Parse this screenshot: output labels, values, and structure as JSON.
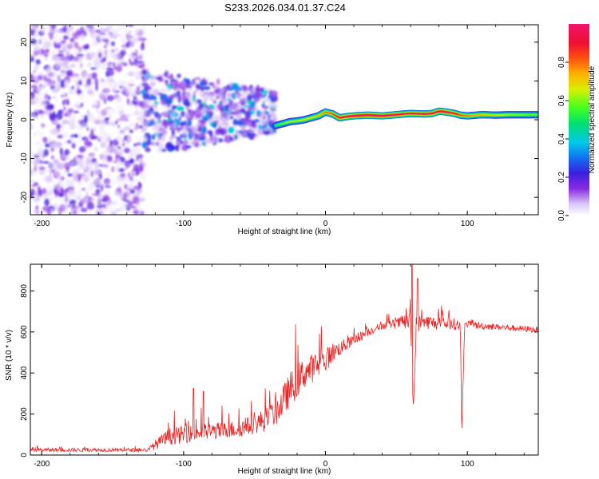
{
  "title": "S233.2026.034.01.37.C24",
  "chart_data": [
    {
      "type": "heatmap",
      "name": "spectrogram",
      "xlabel": "Height of straight line (km)",
      "ylabel": "Frequency (Hz)",
      "xlim": [
        -208,
        150
      ],
      "ylim": [
        -24.5,
        24.5
      ],
      "xticks": [
        -200,
        -100,
        0,
        100
      ],
      "xtick_labels": [
        "-200",
        "-100",
        "0",
        "100"
      ],
      "yticks": [
        -20,
        -10,
        0,
        10,
        20
      ],
      "ytick_labels": [
        "-20",
        "-10",
        "0",
        "10",
        "20"
      ],
      "colorbar": {
        "label": "Normalized spectral amplitude",
        "range": [
          0,
          1
        ],
        "ticks": [
          0.0,
          0.2,
          0.4,
          0.6,
          0.8
        ],
        "tick_labels": [
          "0.0",
          "0.2",
          "0.4",
          "0.6",
          "0.8"
        ]
      },
      "carrier_track": {
        "x": [
          -35,
          -30,
          -25,
          -20,
          -15,
          -10,
          -5,
          0,
          5,
          10,
          15,
          20,
          30,
          40,
          50,
          55,
          60,
          70,
          75,
          80,
          85,
          90,
          95,
          100,
          110,
          120,
          130,
          150
        ],
        "y": [
          -1.5,
          -1.0,
          -0.5,
          -0.3,
          0.0,
          0.5,
          1.0,
          2.0,
          1.5,
          0.5,
          0.8,
          1.0,
          1.2,
          1.0,
          1.3,
          1.5,
          1.6,
          1.5,
          1.6,
          2.2,
          2.0,
          1.7,
          1.2,
          1.0,
          1.3,
          1.2,
          1.3,
          1.3
        ],
        "amplitude": [
          0.45,
          0.5,
          0.55,
          0.55,
          0.6,
          0.6,
          0.65,
          0.7,
          0.75,
          0.85,
          0.9,
          0.95,
          0.97,
          0.95,
          0.9,
          0.85,
          0.85,
          0.9,
          0.88,
          0.9,
          0.92,
          0.85,
          0.75,
          0.7,
          0.65,
          0.6,
          0.55,
          0.5
        ]
      },
      "noise_regions": [
        {
          "x_range": [
            -208,
            -128
          ],
          "y_range": [
            -24.5,
            24.5
          ],
          "amplitude_range": [
            0.02,
            0.22
          ]
        },
        {
          "x_range": [
            -128,
            -35
          ],
          "y_range": [
            -10,
            12
          ],
          "amplitude_range": [
            0.05,
            0.3
          ]
        }
      ]
    },
    {
      "type": "line",
      "name": "snr",
      "xlabel": "Height of straight line (km)",
      "ylabel": "SNR (10 * v/v)",
      "xlim": [
        -208,
        150
      ],
      "ylim": [
        0,
        930
      ],
      "xticks": [
        -200,
        -100,
        0,
        100
      ],
      "xtick_labels": [
        "-200",
        "-100",
        "0",
        "100"
      ],
      "yticks": [
        0,
        200,
        400,
        600,
        800
      ],
      "ytick_labels": [
        "0",
        "200",
        "400",
        "600",
        "800"
      ],
      "color": "#ee2222",
      "series": [
        {
          "name": "SNR",
          "x": [
            -208,
            -180,
            -150,
            -125,
            -120,
            -110,
            -100,
            -90,
            -80,
            -70,
            -60,
            -50,
            -40,
            -35,
            -30,
            -25,
            -20,
            -15,
            -10,
            -5,
            0,
            5,
            10,
            15,
            20,
            25,
            30,
            40,
            50,
            55,
            60,
            62,
            64,
            70,
            80,
            90,
            95,
            96,
            98,
            100,
            110,
            120,
            130,
            140,
            150
          ],
          "y": [
            25,
            25,
            25,
            25,
            50,
            90,
            100,
            110,
            115,
            120,
            130,
            150,
            180,
            210,
            260,
            320,
            360,
            400,
            420,
            440,
            460,
            500,
            520,
            540,
            560,
            580,
            600,
            630,
            640,
            650,
            650,
            210,
            640,
            650,
            640,
            640,
            630,
            100,
            620,
            640,
            630,
            625,
            620,
            615,
            610
          ],
          "spread": [
            15,
            15,
            15,
            15,
            40,
            70,
            70,
            70,
            70,
            70,
            70,
            80,
            100,
            110,
            130,
            140,
            140,
            130,
            120,
            110,
            100,
            80,
            60,
            50,
            45,
            40,
            35,
            30,
            40,
            60,
            80,
            30,
            80,
            60,
            50,
            50,
            40,
            30,
            40,
            30,
            30,
            25,
            25,
            25,
            25
          ],
          "peaks": [
            {
              "x": 61,
              "y": 925
            },
            {
              "x": 65,
              "y": 860
            },
            {
              "x": -93,
              "y": 325
            },
            {
              "x": -86,
              "y": 310
            }
          ]
        }
      ]
    }
  ]
}
